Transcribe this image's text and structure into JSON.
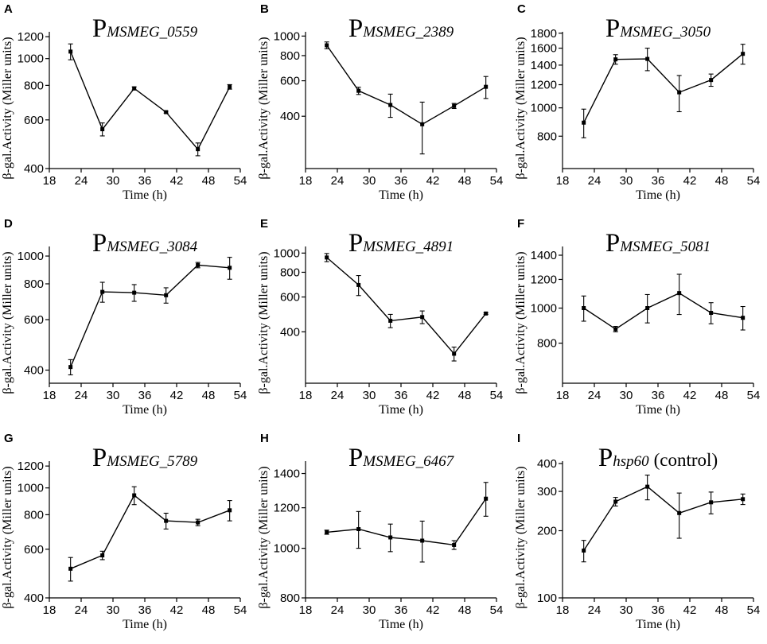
{
  "chart_data": [
    {
      "panel": "A",
      "title_main": "P",
      "title_sub": "MSMEG_0559",
      "title_rest": "",
      "type": "line",
      "xlabel": "Time (h)",
      "ylabel": "β-gal.Activity (Miller units)",
      "xlim": [
        18,
        54
      ],
      "xticks": [
        18,
        24,
        30,
        36,
        42,
        48,
        54
      ],
      "ylim": [
        400,
        1250
      ],
      "yscale": "log",
      "yticks": [
        400,
        600,
        800,
        1000,
        1200
      ],
      "x": [
        22,
        28,
        34,
        40,
        46,
        52
      ],
      "values": [
        1060,
        555,
        780,
        640,
        470,
        790
      ],
      "errors": [
        70,
        30,
        10,
        5,
        25,
        15
      ]
    },
    {
      "panel": "B",
      "title_main": "P",
      "title_sub": "MSMEG_2389",
      "title_rest": "",
      "type": "line",
      "xlabel": "Time (h)",
      "ylabel": "β-gal.Activity (Miller units)",
      "xlim": [
        18,
        54
      ],
      "xticks": [
        18,
        24,
        30,
        36,
        42,
        48,
        54
      ],
      "ylim": [
        220,
        1050
      ],
      "yscale": "log",
      "yticks": [
        400,
        600,
        800,
        1000
      ],
      "x": [
        22,
        28,
        34,
        40,
        46,
        52
      ],
      "values": [
        900,
        535,
        455,
        365,
        450,
        560
      ],
      "errors": [
        35,
        22,
        60,
        105,
        13,
        70
      ]
    },
    {
      "panel": "C",
      "title_main": "P",
      "title_sub": "MSMEG_3050",
      "title_rest": "",
      "type": "line",
      "xlabel": "Time (h)",
      "ylabel": "β-gal.Activity (Miller units)",
      "xlim": [
        18,
        54
      ],
      "xticks": [
        18,
        24,
        30,
        36,
        42,
        48,
        54
      ],
      "ylim": [
        620,
        1820
      ],
      "yscale": "log",
      "yticks": [
        800,
        1000,
        1200,
        1400,
        1600,
        1800
      ],
      "x": [
        22,
        28,
        34,
        40,
        46,
        52
      ],
      "values": [
        890,
        1465,
        1470,
        1130,
        1245,
        1530
      ],
      "errors": [
        100,
        55,
        130,
        160,
        60,
        120
      ]
    },
    {
      "panel": "D",
      "title_main": "P",
      "title_sub": "MSMEG_3084",
      "title_rest": "",
      "type": "line",
      "xlabel": "Time (h)",
      "ylabel": "β-gal.Activity (Miller units)",
      "xlim": [
        18,
        54
      ],
      "xticks": [
        18,
        24,
        30,
        36,
        42,
        48,
        54
      ],
      "ylim": [
        360,
        1080
      ],
      "yscale": "log",
      "yticks": [
        400,
        600,
        800,
        1000
      ],
      "x": [
        22,
        28,
        34,
        40,
        46,
        52
      ],
      "values": [
        410,
        750,
        745,
        730,
        930,
        910
      ],
      "errors": [
        25,
        60,
        50,
        45,
        20,
        80
      ]
    },
    {
      "panel": "E",
      "title_main": "P",
      "title_sub": "MSMEG_4891",
      "title_rest": "",
      "type": "line",
      "xlabel": "Time (h)",
      "ylabel": "β-gal.Activity (Miller units)",
      "xlim": [
        18,
        54
      ],
      "xticks": [
        18,
        24,
        30,
        36,
        42,
        48,
        54
      ],
      "ylim": [
        220,
        1080
      ],
      "yscale": "log",
      "yticks": [
        400,
        600,
        800,
        1000
      ],
      "x": [
        22,
        28,
        34,
        40,
        46,
        52
      ],
      "values": [
        950,
        690,
        455,
        475,
        310,
        495
      ],
      "errors": [
        45,
        80,
        35,
        35,
        25,
        5
      ]
    },
    {
      "panel": "F",
      "title_main": "P",
      "title_sub": "MSMEG_5081",
      "title_rest": "",
      "type": "line",
      "xlabel": "Time (h)",
      "ylabel": "β-gal.Activity (Miller units)",
      "xlim": [
        18,
        54
      ],
      "xticks": [
        18,
        24,
        30,
        36,
        42,
        48,
        54
      ],
      "ylim": [
        620,
        1480
      ],
      "yscale": "log",
      "yticks": [
        800,
        1000,
        1200,
        1400
      ],
      "x": [
        22,
        28,
        34,
        40,
        46,
        52
      ],
      "values": [
        1000,
        875,
        1000,
        1100,
        970,
        940
      ],
      "errors": [
        80,
        15,
        90,
        140,
        65,
        70
      ]
    },
    {
      "panel": "G",
      "title_main": "P",
      "title_sub": "MSMEG_5789",
      "title_rest": "",
      "type": "line",
      "xlabel": "Time (h)",
      "ylabel": "β-gal.Activity (Miller units)",
      "xlim": [
        18,
        54
      ],
      "xticks": [
        18,
        24,
        30,
        36,
        42,
        48,
        54
      ],
      "ylim": [
        400,
        1250
      ],
      "yscale": "log",
      "yticks": [
        400,
        600,
        800,
        1000,
        1200
      ],
      "x": [
        22,
        28,
        34,
        40,
        46,
        52
      ],
      "values": [
        510,
        570,
        940,
        760,
        750,
        830
      ],
      "errors": [
        50,
        20,
        70,
        50,
        20,
        70
      ]
    },
    {
      "panel": "H",
      "title_main": "P",
      "title_sub": "MSMEG_6467",
      "title_rest": "",
      "type": "line",
      "xlabel": "Time (h)",
      "ylabel": "β-gal.Activity (Miller units)",
      "xlim": [
        18,
        54
      ],
      "xticks": [
        18,
        24,
        30,
        36,
        42,
        48,
        54
      ],
      "ylim": [
        800,
        1480
      ],
      "yscale": "log",
      "yticks": [
        800,
        1000,
        1200,
        1400
      ],
      "x": [
        22,
        28,
        34,
        40,
        46,
        52
      ],
      "values": [
        1075,
        1090,
        1050,
        1035,
        1015,
        1250
      ],
      "errors": [
        10,
        90,
        65,
        95,
        20,
        95
      ]
    },
    {
      "panel": "I",
      "title_main": "P",
      "title_sub": "hsp60",
      "title_rest": "(control)",
      "type": "line",
      "xlabel": "Time (h)",
      "ylabel": "β-gal.Activity (Miller units)",
      "xlim": [
        18,
        54
      ],
      "xticks": [
        18,
        24,
        30,
        36,
        42,
        48,
        54
      ],
      "ylim": [
        100,
        410
      ],
      "yscale": "log",
      "yticks": [
        100,
        200,
        300,
        400
      ],
      "x": [
        22,
        28,
        34,
        40,
        46,
        52
      ],
      "values": [
        163,
        270,
        315,
        240,
        268,
        277
      ],
      "errors": [
        18,
        12,
        40,
        55,
        30,
        15
      ]
    }
  ]
}
